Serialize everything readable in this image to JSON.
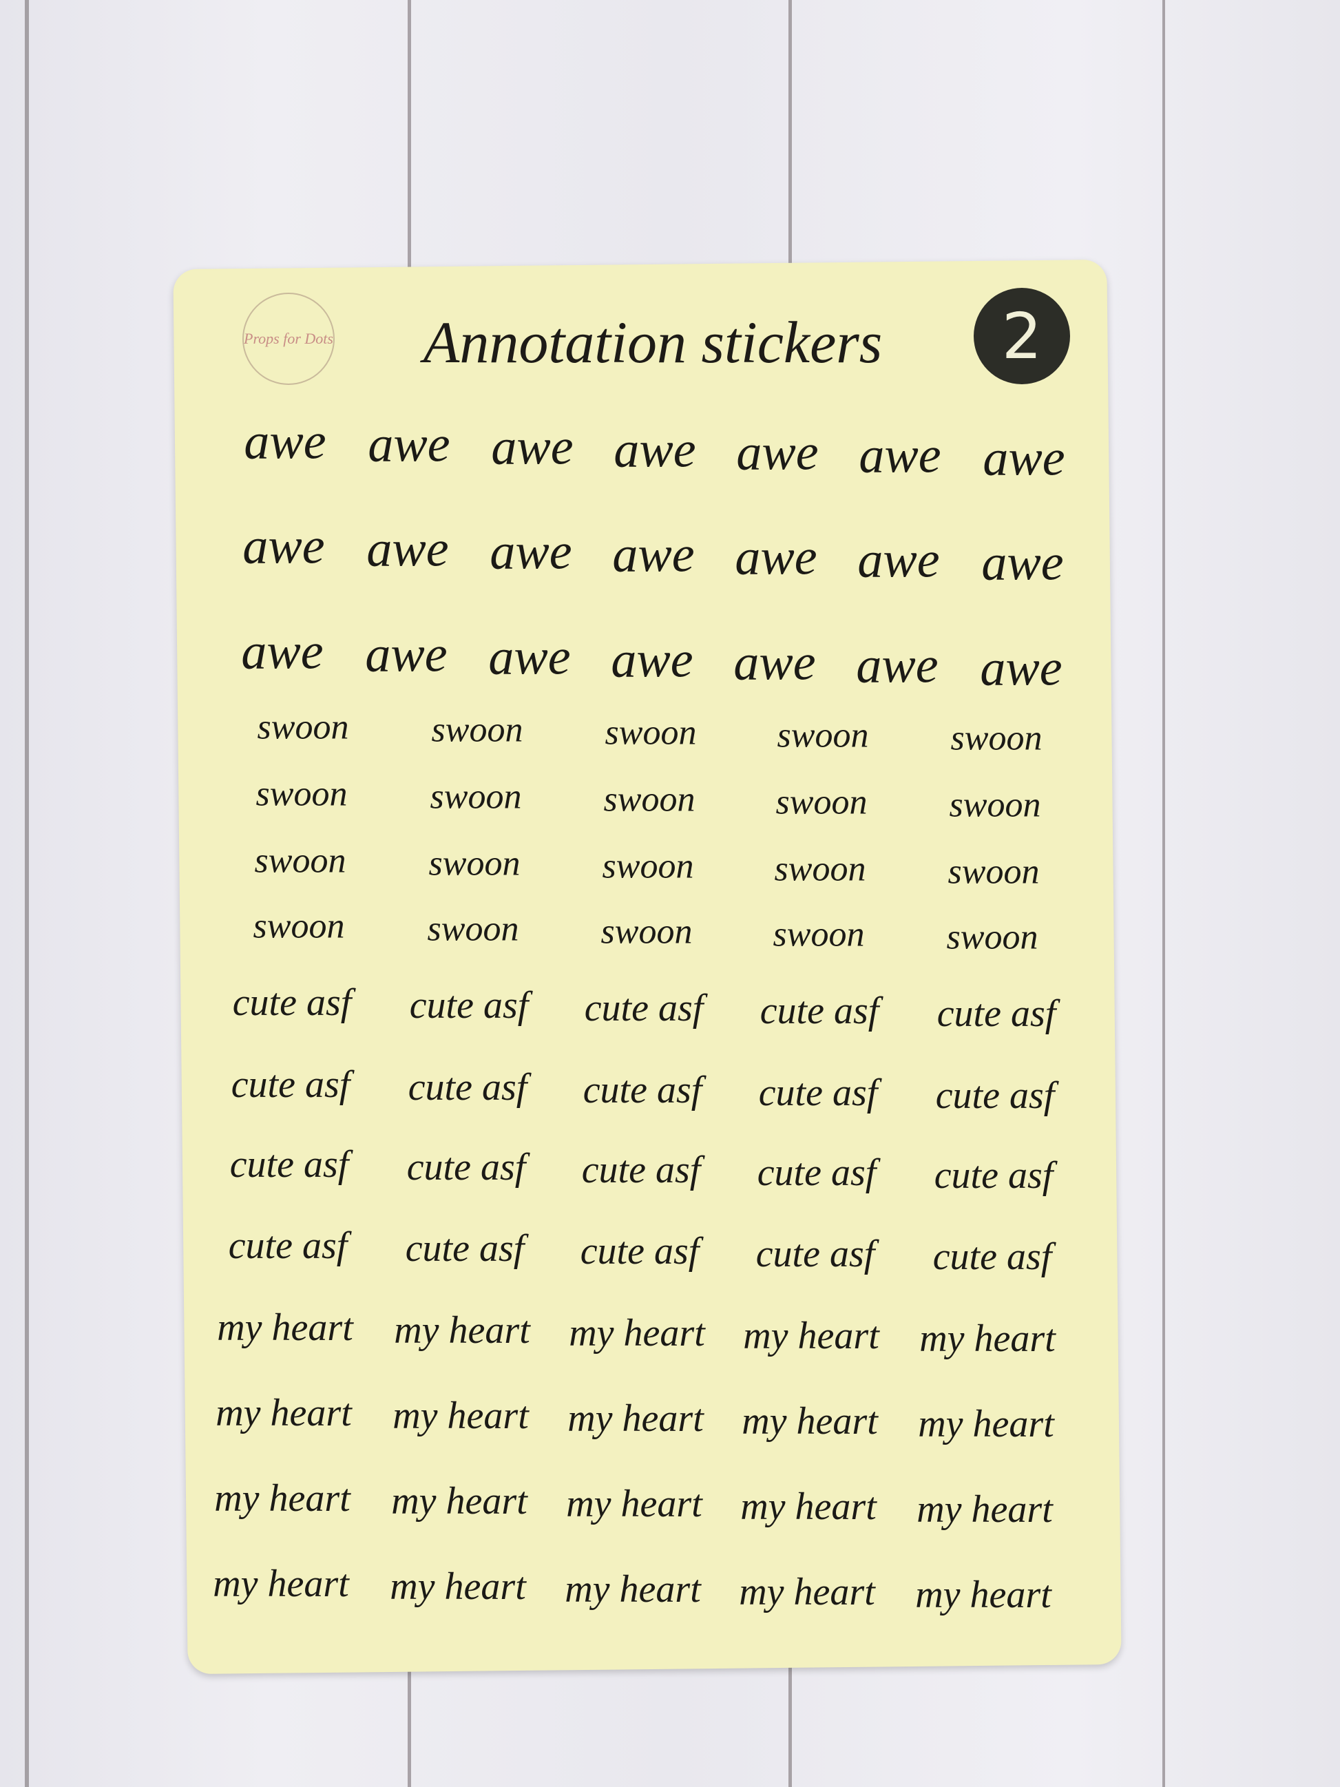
{
  "sheet": {
    "title": "Annotation stickers",
    "number": "2",
    "logo_text": "Props for Dots",
    "background_color": "#f3f1c0",
    "ink_color": "#1b1a16"
  },
  "sections": [
    {
      "word": "awe",
      "rows": 3,
      "columns": 7
    },
    {
      "word": "swoon",
      "rows": 4,
      "columns": 5
    },
    {
      "word": "cute asf",
      "rows": 4,
      "columns": 5
    },
    {
      "word": "my heart",
      "rows": 4,
      "columns": 5
    }
  ]
}
